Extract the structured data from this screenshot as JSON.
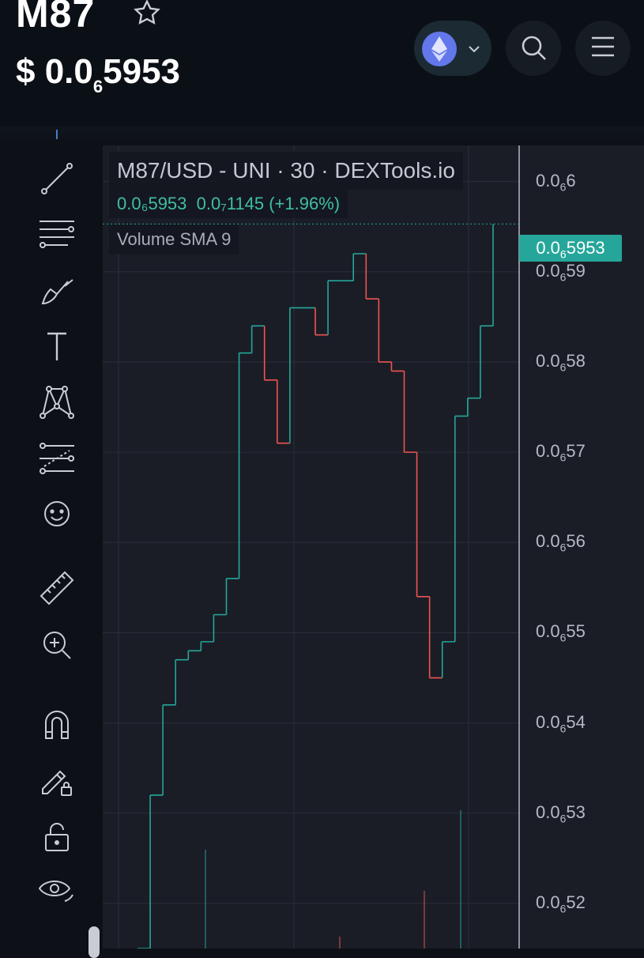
{
  "header": {
    "token_name": "M87",
    "price_prefix": "$ 0.0",
    "price_sub": "6",
    "price_suffix": "5953",
    "icons": [
      "star-icon",
      "ethereum-icon",
      "chevron-down-icon",
      "search-icon",
      "menu-icon"
    ]
  },
  "toolbar": {
    "tools": [
      "trend-line-icon",
      "horizontal-lines-icon",
      "brush-icon",
      "text-icon",
      "pattern-icon",
      "fib-icon",
      "emoji-icon",
      "ruler-icon",
      "zoom-in-icon",
      "magnet-icon",
      "lock-draw-icon",
      "unlock-icon",
      "eye-icon"
    ]
  },
  "chart": {
    "legend_title": "M87/USD - UNI · 30 · DEXTools.io",
    "legend_price": "0.0₆5953",
    "legend_change": "0.0₇1145 (+1.96%)",
    "legend_indicator": "Volume SMA 9",
    "current_price_label": "0.0",
    "current_price_sub": "6",
    "current_price_suffix": "5953",
    "colors": {
      "up": "#26a69a",
      "down": "#ef5350",
      "tag": "#26a69a",
      "background": "#1a1d26"
    }
  },
  "chart_data": {
    "type": "line",
    "title": "M87/USD - UNI · 30 · DEXTools.io",
    "y_axis_ticks": [
      {
        "prefix": "0.0",
        "sub": "6",
        "suffix": "6"
      },
      {
        "prefix": "0.0",
        "sub": "6",
        "suffix": "59"
      },
      {
        "prefix": "0.0",
        "sub": "6",
        "suffix": "58"
      },
      {
        "prefix": "0.0",
        "sub": "6",
        "suffix": "57"
      },
      {
        "prefix": "0.0",
        "sub": "6",
        "suffix": "56"
      },
      {
        "prefix": "0.0",
        "sub": "6",
        "suffix": "55"
      },
      {
        "prefix": "0.0",
        "sub": "6",
        "suffix": "54"
      },
      {
        "prefix": "0.0",
        "sub": "6",
        "suffix": "53"
      },
      {
        "prefix": "0.0",
        "sub": "6",
        "suffix": "52"
      }
    ],
    "y_values": [
      6e-07,
      5.9e-07,
      5.8e-07,
      5.7e-07,
      5.6e-07,
      5.5e-07,
      5.4e-07,
      5.3e-07,
      5.2e-07
    ],
    "series": [
      {
        "values": [
          5.15e-07,
          5.32e-07,
          5.42e-07,
          5.47e-07,
          5.48e-07,
          5.49e-07,
          5.52e-07,
          5.56e-07,
          5.81e-07,
          5.84e-07,
          5.78e-07,
          5.71e-07,
          5.86e-07,
          5.86e-07,
          5.83e-07,
          5.89e-07,
          5.89e-07,
          5.92e-07,
          5.87e-07,
          5.8e-07,
          5.79e-07,
          5.7e-07,
          5.54e-07,
          5.45e-07,
          5.49e-07,
          5.74e-07,
          5.76e-07,
          5.84e-07,
          5.953e-07
        ]
      }
    ],
    "ylim": [
      5.15e-07,
      6.04e-07
    ]
  }
}
